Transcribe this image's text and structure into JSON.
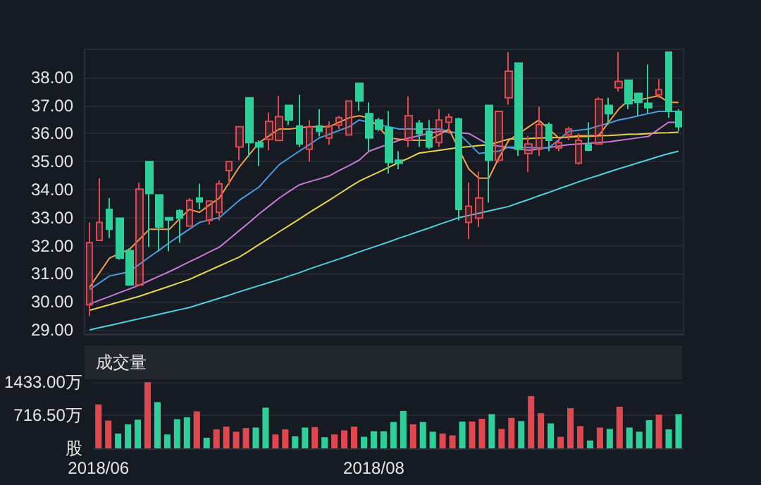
{
  "chart_data": [
    {
      "type": "candlestick",
      "categories": [
        null,
        null,
        null,
        null,
        null,
        null,
        null,
        null,
        null,
        null,
        null,
        null,
        null,
        null,
        null,
        null,
        null,
        null,
        null,
        null,
        null,
        null,
        null,
        null,
        null,
        null,
        null,
        null,
        null,
        null,
        null,
        null,
        null,
        null,
        null,
        null,
        null,
        null,
        null,
        null,
        null,
        null,
        null,
        null,
        null,
        null,
        null,
        null,
        null,
        null,
        null,
        null,
        null,
        null,
        null,
        null,
        null,
        null,
        null,
        null
      ],
      "ohlc": [
        [
          29.89,
          32.83,
          29.49,
          32.11
        ],
        [
          32.19,
          34.41,
          32.19,
          32.83
        ],
        [
          33.3,
          33.7,
          32.27,
          32.59
        ],
        [
          32.98,
          33.0,
          31.5,
          31.56
        ],
        [
          31.83,
          31.9,
          30.6,
          30.6
        ],
        [
          30.6,
          34.25,
          30.6,
          34.02
        ],
        [
          35.0,
          35.0,
          31.95,
          33.86
        ],
        [
          33.81,
          33.81,
          31.79,
          32.67
        ],
        [
          33.0,
          33.0,
          31.8,
          32.92
        ],
        [
          33.25,
          33.3,
          32.11,
          32.98
        ],
        [
          32.7,
          33.7,
          32.7,
          33.62
        ],
        [
          33.7,
          34.21,
          33.3,
          33.57
        ],
        [
          32.9,
          33.62,
          32.75,
          33.59
        ],
        [
          33.19,
          34.33,
          32.9,
          34.21
        ],
        [
          34.68,
          35.0,
          34.17,
          35.0
        ],
        [
          35.52,
          36.27,
          35.05,
          36.24
        ],
        [
          37.27,
          37.27,
          35.16,
          35.68
        ],
        [
          35.68,
          35.76,
          34.84,
          35.52
        ],
        [
          35.79,
          36.75,
          35.4,
          36.43
        ],
        [
          35.75,
          37.35,
          35.75,
          36.6
        ],
        [
          37.0,
          37.0,
          36.3,
          36.48
        ],
        [
          36.27,
          37.38,
          35.52,
          35.63
        ],
        [
          35.44,
          36.48,
          35.0,
          36.24
        ],
        [
          36.27,
          36.87,
          35.9,
          36.08
        ],
        [
          35.84,
          36.43,
          35.6,
          36.27
        ],
        [
          36.3,
          36.63,
          36.16,
          36.56
        ],
        [
          35.95,
          37.16,
          35.95,
          37.16
        ],
        [
          37.79,
          37.79,
          36.8,
          37.16
        ],
        [
          36.71,
          37.11,
          35.37,
          35.84
        ],
        [
          36.48,
          36.56,
          36.08,
          36.16
        ],
        [
          36.21,
          36.8,
          34.57,
          34.97
        ],
        [
          35.05,
          35.37,
          34.73,
          34.94
        ],
        [
          35.76,
          37.32,
          35.52,
          36.63
        ],
        [
          36.37,
          36.48,
          35.52,
          36.0
        ],
        [
          36.08,
          36.48,
          35.44,
          35.52
        ],
        [
          35.68,
          36.87,
          35.52,
          36.48
        ],
        [
          36.4,
          36.71,
          36.0,
          36.59
        ],
        [
          36.52,
          36.56,
          32.9,
          33.3
        ],
        [
          32.83,
          34.25,
          32.24,
          33.41
        ],
        [
          32.98,
          34.65,
          32.67,
          33.7
        ],
        [
          37.0,
          37.0,
          33.54,
          35.05
        ],
        [
          35.05,
          36.8,
          34.97,
          36.79
        ],
        [
          37.27,
          38.9,
          37.03,
          38.22
        ],
        [
          38.51,
          38.51,
          35.2,
          35.44
        ],
        [
          35.29,
          35.92,
          34.62,
          35.63
        ],
        [
          35.44,
          36.95,
          35.2,
          36.32
        ],
        [
          36.32,
          36.4,
          35.37,
          35.76
        ],
        [
          35.48,
          35.84,
          35.37,
          35.68
        ],
        [
          35.95,
          36.24,
          35.76,
          36.16
        ],
        [
          34.94,
          36.0,
          34.89,
          35.76
        ],
        [
          35.6,
          36.4,
          35.37,
          35.41
        ],
        [
          35.63,
          37.3,
          35.6,
          37.22
        ],
        [
          37.0,
          37.27,
          36.32,
          36.71
        ],
        [
          37.63,
          38.9,
          37.5,
          37.86
        ],
        [
          37.9,
          37.9,
          36.87,
          37.06
        ],
        [
          37.43,
          37.43,
          36.63,
          37.11
        ],
        [
          37.08,
          38.46,
          36.71,
          36.92
        ],
        [
          37.38,
          37.94,
          37.27,
          37.56
        ],
        [
          38.9,
          38.9,
          36.56,
          36.79
        ],
        [
          36.79,
          36.87,
          36.08,
          36.24
        ]
      ],
      "colors": [
        "#e0474f",
        "#e0474f",
        "#2ecf99",
        "#2ecf99",
        "#2ecf99",
        "#e0474f",
        "#2ecf99",
        "#2ecf99",
        "#2ecf99",
        "#2ecf99",
        "#e0474f",
        "#2ecf99",
        "#e0474f",
        "#e0474f",
        "#e0474f",
        "#e0474f",
        "#2ecf99",
        "#2ecf99",
        "#e0474f",
        "#e0474f",
        "#2ecf99",
        "#2ecf99",
        "#e0474f",
        "#2ecf99",
        "#e0474f",
        "#e0474f",
        "#e0474f",
        "#2ecf99",
        "#2ecf99",
        "#2ecf99",
        "#2ecf99",
        "#2ecf99",
        "#e0474f",
        "#2ecf99",
        "#2ecf99",
        "#e0474f",
        "#e0474f",
        "#2ecf99",
        "#e0474f",
        "#e0474f",
        "#2ecf99",
        "#e0474f",
        "#e0474f",
        "#2ecf99",
        "#e0474f",
        "#e0474f",
        "#2ecf99",
        "#e0474f",
        "#e0474f",
        "#e0474f",
        "#2ecf99",
        "#e0474f",
        "#2ecf99",
        "#e0474f",
        "#2ecf99",
        "#2ecf99",
        "#2ecf99",
        "#e0474f",
        "#2ecf99",
        "#2ecf99"
      ],
      "series": [
        {
          "type": "line",
          "color": "#4fd0e0",
          "values": [
            29.0,
            29.08,
            29.16,
            29.24,
            29.32,
            29.4,
            29.48,
            29.56,
            29.64,
            29.72,
            29.8,
            29.91,
            30.02,
            30.13,
            30.24,
            30.36,
            30.47,
            30.58,
            30.69,
            30.8,
            30.92,
            31.04,
            31.17,
            31.29,
            31.41,
            31.53,
            31.65,
            31.78,
            31.9,
            32.02,
            32.14,
            32.27,
            32.39,
            32.51,
            32.63,
            32.76,
            32.88,
            33.0,
            33.08,
            33.16,
            33.24,
            33.32,
            33.4,
            33.53,
            33.65,
            33.78,
            33.9,
            34.03,
            34.15,
            34.28,
            34.4,
            34.51,
            34.63,
            34.74,
            34.85,
            34.96,
            35.07,
            35.18,
            35.28,
            35.37
          ]
        },
        {
          "type": "line",
          "color": "#e8d44d",
          "values": [
            29.7,
            29.8,
            29.9,
            30.0,
            30.1,
            30.2,
            30.32,
            30.44,
            30.56,
            30.68,
            30.8,
            30.96,
            31.12,
            31.28,
            31.44,
            31.6,
            31.82,
            32.05,
            32.27,
            32.5,
            32.72,
            32.95,
            33.18,
            33.4,
            33.62,
            33.85,
            34.08,
            34.3,
            34.47,
            34.63,
            34.8,
            34.97,
            35.13,
            35.3,
            35.35,
            35.4,
            35.45,
            35.5,
            35.53,
            35.57,
            35.6,
            35.7,
            35.8,
            35.81,
            35.82,
            35.84,
            35.85,
            35.86,
            35.87,
            35.89,
            35.9,
            35.92,
            35.93,
            35.95,
            35.97,
            35.98,
            36.0,
            36.02,
            36.03,
            36.05
          ]
        },
        {
          "type": "line",
          "color": "#c77ad6",
          "values": [
            29.92,
            30.06,
            30.19,
            30.33,
            30.46,
            30.6,
            30.76,
            30.92,
            31.08,
            31.25,
            31.43,
            31.6,
            31.78,
            31.95,
            32.24,
            32.54,
            32.83,
            33.14,
            33.42,
            33.7,
            33.94,
            34.17,
            34.28,
            34.38,
            34.49,
            34.68,
            34.86,
            35.05,
            35.37,
            35.5,
            35.63,
            35.76,
            35.84,
            35.92,
            36.0,
            36.08,
            36.05,
            36.03,
            36.0,
            35.8,
            35.6,
            35.55,
            35.5,
            35.45,
            35.4,
            35.45,
            35.5,
            35.55,
            35.6,
            35.63,
            35.65,
            35.68,
            35.7,
            35.75,
            35.8,
            35.85,
            35.9,
            36.15,
            36.4,
            36.4
          ]
        },
        {
          "type": "line",
          "color": "#4b9be0",
          "values": [
            30.44,
            30.68,
            30.92,
            31.0,
            31.08,
            31.34,
            31.6,
            31.85,
            32.11,
            32.35,
            32.59,
            32.83,
            32.92,
            33.0,
            33.31,
            33.62,
            33.86,
            34.1,
            34.5,
            34.89,
            35.13,
            35.37,
            35.6,
            35.84,
            35.97,
            36.11,
            36.24,
            36.48,
            36.4,
            36.32,
            36.24,
            36.16,
            36.16,
            36.16,
            36.16,
            36.16,
            36.08,
            36.0,
            35.65,
            35.29,
            35.33,
            35.37,
            35.52,
            35.51,
            35.5,
            35.49,
            35.48,
            35.78,
            36.08,
            36.12,
            36.16,
            36.27,
            36.37,
            36.48,
            36.55,
            36.63,
            36.71,
            36.79,
            36.79,
            36.79
          ]
        },
        {
          "type": "line",
          "color": "#f0a04b",
          "values": [
            30.52,
            31.04,
            31.56,
            31.72,
            31.87,
            32.23,
            32.59,
            32.59,
            32.59,
            32.95,
            33.3,
            33.19,
            33.45,
            33.7,
            34.26,
            34.81,
            35.25,
            35.68,
            35.92,
            36.16,
            36.16,
            36.2,
            36.24,
            36.24,
            36.24,
            36.4,
            36.56,
            36.63,
            36.56,
            36.2,
            35.84,
            35.8,
            35.76,
            35.76,
            35.76,
            35.96,
            36.16,
            35.44,
            34.73,
            34.41,
            34.41,
            35.13,
            35.76,
            36.0,
            36.24,
            36.48,
            36.16,
            35.84,
            35.88,
            35.92,
            35.92,
            35.92,
            36.4,
            36.87,
            37.19,
            37.19,
            37.27,
            37.35,
            37.11,
            37.11
          ]
        }
      ],
      "ylim": [
        28.85,
        39.0
      ],
      "yticks": [
        {
          "value": 29,
          "label": "29.00"
        },
        {
          "value": 30,
          "label": "30.00"
        },
        {
          "value": 31,
          "label": "31.00"
        },
        {
          "value": 32,
          "label": "32.00"
        },
        {
          "value": 33,
          "label": "33.00"
        },
        {
          "value": 34,
          "label": "34.00"
        },
        {
          "value": 35,
          "label": "35.00"
        },
        {
          "value": 36,
          "label": "36.00"
        },
        {
          "value": 37,
          "label": "37.00"
        },
        {
          "value": 38,
          "label": "38.00"
        }
      ],
      "grid": "y"
    },
    {
      "type": "bar",
      "title": "成交量",
      "categories": [
        "2018/06",
        null,
        null,
        null,
        null,
        null,
        null,
        null,
        null,
        null,
        null,
        null,
        null,
        null,
        null,
        null,
        null,
        null,
        null,
        null,
        null,
        null,
        null,
        null,
        null,
        null,
        null,
        null,
        "2018/08",
        null,
        null,
        null,
        null,
        null,
        null,
        null,
        null,
        null,
        null,
        null,
        null,
        null,
        null,
        null,
        null,
        null,
        null,
        null,
        null,
        null,
        null,
        null,
        null,
        null,
        null,
        null,
        null,
        null,
        null,
        null
      ],
      "values": [
        950,
        600,
        320,
        520,
        620,
        1430,
        1000,
        300,
        630,
        670,
        800,
        230,
        410,
        470,
        360,
        440,
        450,
        880,
        300,
        410,
        260,
        450,
        460,
        240,
        300,
        390,
        470,
        250,
        370,
        370,
        570,
        810,
        520,
        570,
        360,
        320,
        280,
        580,
        580,
        640,
        740,
        420,
        660,
        590,
        1130,
        760,
        540,
        250,
        870,
        480,
        170,
        450,
        420,
        900,
        450,
        360,
        610,
        730,
        410,
        740
      ],
      "colors": [
        "#e0474f",
        "#e0474f",
        "#2ecf99",
        "#2ecf99",
        "#2ecf99",
        "#e0474f",
        "#2ecf99",
        "#2ecf99",
        "#2ecf99",
        "#2ecf99",
        "#e0474f",
        "#2ecf99",
        "#e0474f",
        "#e0474f",
        "#e0474f",
        "#e0474f",
        "#2ecf99",
        "#2ecf99",
        "#e0474f",
        "#e0474f",
        "#2ecf99",
        "#2ecf99",
        "#e0474f",
        "#2ecf99",
        "#e0474f",
        "#e0474f",
        "#e0474f",
        "#2ecf99",
        "#2ecf99",
        "#2ecf99",
        "#2ecf99",
        "#2ecf99",
        "#e0474f",
        "#2ecf99",
        "#2ecf99",
        "#e0474f",
        "#e0474f",
        "#2ecf99",
        "#e0474f",
        "#e0474f",
        "#2ecf99",
        "#e0474f",
        "#e0474f",
        "#2ecf99",
        "#e0474f",
        "#e0474f",
        "#2ecf99",
        "#e0474f",
        "#e0474f",
        "#e0474f",
        "#2ecf99",
        "#e0474f",
        "#2ecf99",
        "#e0474f",
        "#2ecf99",
        "#2ecf99",
        "#2ecf99",
        "#e0474f",
        "#2ecf99",
        "#2ecf99"
      ],
      "ylim": [
        0,
        1433
      ],
      "yticks": [
        {
          "value": 0,
          "label": "股"
        },
        {
          "value": 716.5,
          "label": "716.50万"
        },
        {
          "value": 1433,
          "label": "1433.00万"
        }
      ],
      "grid": "y"
    }
  ]
}
